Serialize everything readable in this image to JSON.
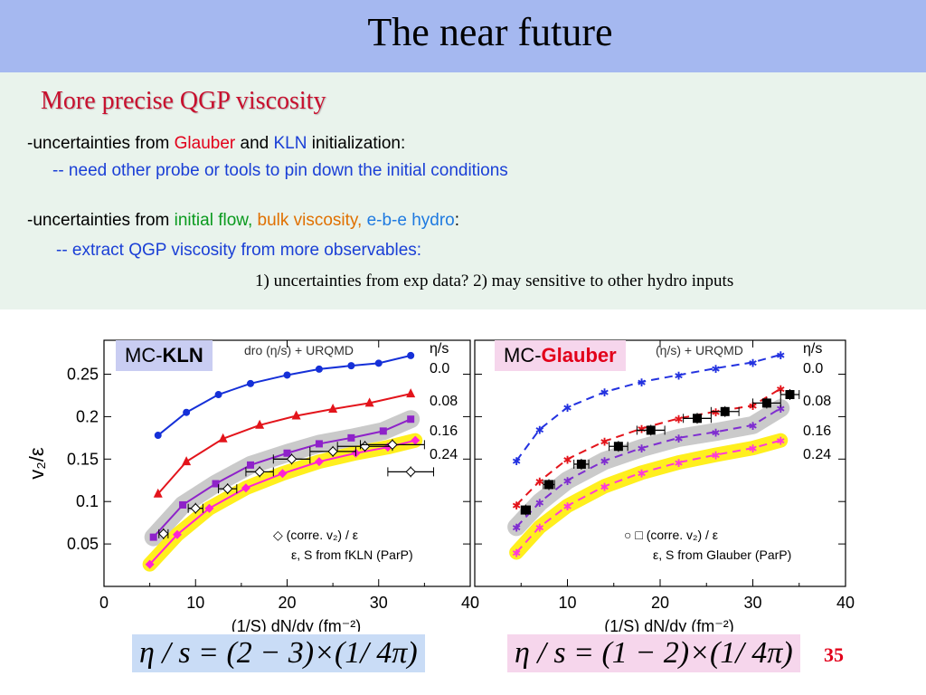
{
  "slide": {
    "title": "The near future",
    "subtitle": "More precise QGP viscosity",
    "line1": {
      "prefix": "-uncertainties from ",
      "glauber": "Glauber",
      "and": " and ",
      "kln": "KLN",
      "suffix": " initialization:"
    },
    "line2": "-- need other probe or tools to pin down the initial conditions",
    "line3": {
      "prefix": "-uncertainties from ",
      "initial_flow": "initial flow,",
      "bulk": " bulk viscosity,",
      "ebe": " e-b-e hydro",
      "suffix": ":"
    },
    "line4": "-- extract QGP viscosity from more observables:",
    "note": "1) uncertainties from exp data?  2) may sensitive to other hydro inputs",
    "page": "35",
    "colors": {
      "title_bg": "#a5b8f0",
      "panel_bg": "#e9f3ec",
      "subtitle": "#c8102e"
    }
  },
  "left_plot": {
    "badge_prefix": "MC-",
    "badge_bold": "KLN",
    "header": "dro (η/s) + URQMD",
    "eta_label": "η/s",
    "eta_values": [
      "0.0",
      "0.08",
      "0.16",
      "0.24"
    ],
    "ylabel": "v₂/ε",
    "xlabel": "(1/S) dN/dy (fm⁻²)",
    "yticks": [
      "0.05",
      "0.1",
      "0.15",
      "0.2",
      "0.25"
    ],
    "xticks": [
      "0",
      "10",
      "20",
      "30",
      "40"
    ],
    "legend1": "(corre. v₂) / ε",
    "legend2": "ε, S from  fKLN (ParP)",
    "formula": "η / s = (2 − 3)×(1/ 4π)"
  },
  "right_plot": {
    "badge_prefix": "MC-",
    "badge_bold": "Glauber",
    "header": "(η/s) + URQMD",
    "eta_label": "η/s",
    "eta_values": [
      "0.0",
      "0.08",
      "0.16",
      "0.24"
    ],
    "xlabel": "(1/S) dN/dy (fm⁻²)",
    "xticks": [
      "0",
      "10",
      "20",
      "30",
      "40"
    ],
    "legend1": "(corre. v₂) / ε",
    "legend2": "ε, S from  Glauber (ParP)",
    "formula": "η / s = (1 − 2)×(1/ 4π)"
  },
  "chart_data": [
    {
      "type": "line",
      "title": "MC-KLN",
      "xlabel": "(1/S) dN/dy (fm⁻²)",
      "ylabel": "v₂/ε",
      "xlim": [
        0,
        40
      ],
      "ylim": [
        0,
        0.29
      ],
      "series": [
        {
          "name": "0.0",
          "color": "#1530d8",
          "marker": "circle",
          "x": [
            5.9,
            9,
            12.5,
            16,
            20,
            23.5,
            27,
            30,
            33.5
          ],
          "y": [
            0.178,
            0.205,
            0.226,
            0.239,
            0.249,
            0.256,
            0.26,
            0.263,
            0.272
          ]
        },
        {
          "name": "0.08",
          "color": "#e3141b",
          "marker": "triangle",
          "x": [
            5.9,
            9,
            13,
            17,
            21,
            25,
            29,
            33.5
          ],
          "y": [
            0.109,
            0.147,
            0.174,
            0.19,
            0.201,
            0.209,
            0.216,
            0.227
          ]
        },
        {
          "name": "0.16",
          "color": "#8e22c9",
          "marker": "square",
          "x": [
            5.4,
            8.6,
            12.2,
            16,
            20,
            23.5,
            27,
            30.5,
            33.5
          ],
          "y": [
            0.058,
            0.096,
            0.121,
            0.143,
            0.157,
            0.168,
            0.175,
            0.183,
            0.197
          ]
        },
        {
          "name": "0.24",
          "color": "#ff22d4",
          "marker": "diamond",
          "x": [
            5,
            8,
            11.5,
            15.5,
            19.5,
            23.5,
            27.5,
            31,
            34
          ],
          "y": [
            0.026,
            0.061,
            0.092,
            0.116,
            0.133,
            0.147,
            0.157,
            0.164,
            0.172
          ]
        }
      ],
      "data_points": {
        "name": "(corre. v₂) / ε",
        "x": [
          6.5,
          10,
          13.5,
          17,
          20.5,
          25,
          28.5,
          31.5,
          33.5
        ],
        "y": [
          0.062,
          0.092,
          0.115,
          0.135,
          0.15,
          0.159,
          0.165,
          0.167,
          0.135
        ],
        "xerr": [
          0.5,
          0.8,
          1.0,
          1.5,
          2.0,
          2.5,
          3.0,
          3.5,
          2.5
        ]
      }
    },
    {
      "type": "line",
      "title": "MC-Glauber",
      "xlabel": "(1/S) dN/dy (fm⁻²)",
      "ylabel": "v₂/ε",
      "xlim": [
        0,
        40
      ],
      "ylim": [
        0,
        0.29
      ],
      "series": [
        {
          "name": "0.0",
          "color": "#2332e0",
          "marker": "star",
          "x": [
            4.5,
            7,
            10,
            14,
            18,
            22,
            26,
            30,
            33
          ],
          "y": [
            0.148,
            0.185,
            0.211,
            0.229,
            0.241,
            0.249,
            0.257,
            0.264,
            0.273
          ]
        },
        {
          "name": "0.08",
          "color": "#e3141b",
          "marker": "star",
          "x": [
            4.5,
            7,
            10,
            14,
            18,
            22,
            26,
            30,
            33
          ],
          "y": [
            0.096,
            0.124,
            0.15,
            0.171,
            0.186,
            0.198,
            0.206,
            0.213,
            0.233
          ]
        },
        {
          "name": "0.16",
          "color": "#7f2ed0",
          "marker": "star",
          "x": [
            4.5,
            7,
            10,
            14,
            18,
            22,
            26,
            30,
            33
          ],
          "y": [
            0.07,
            0.099,
            0.125,
            0.148,
            0.163,
            0.175,
            0.182,
            0.19,
            0.21
          ]
        },
        {
          "name": "0.24",
          "color": "#ff3ad8",
          "marker": "star",
          "x": [
            4.5,
            7,
            10,
            14,
            18,
            22,
            26,
            30,
            33
          ],
          "y": [
            0.04,
            0.07,
            0.095,
            0.118,
            0.134,
            0.146,
            0.155,
            0.163,
            0.172
          ]
        }
      ],
      "data_points": {
        "name": "(corre. v₂) / ε",
        "x": [
          5.5,
          8,
          11.5,
          15.5,
          19,
          24,
          27,
          31.5,
          34
        ],
        "y": [
          0.09,
          0.12,
          0.144,
          0.165,
          0.184,
          0.198,
          0.206,
          0.216,
          0.226
        ],
        "xerr": [
          0.5,
          0.6,
          0.8,
          1.0,
          1.5,
          1.5,
          1.5,
          1.5,
          1.0
        ]
      }
    }
  ]
}
